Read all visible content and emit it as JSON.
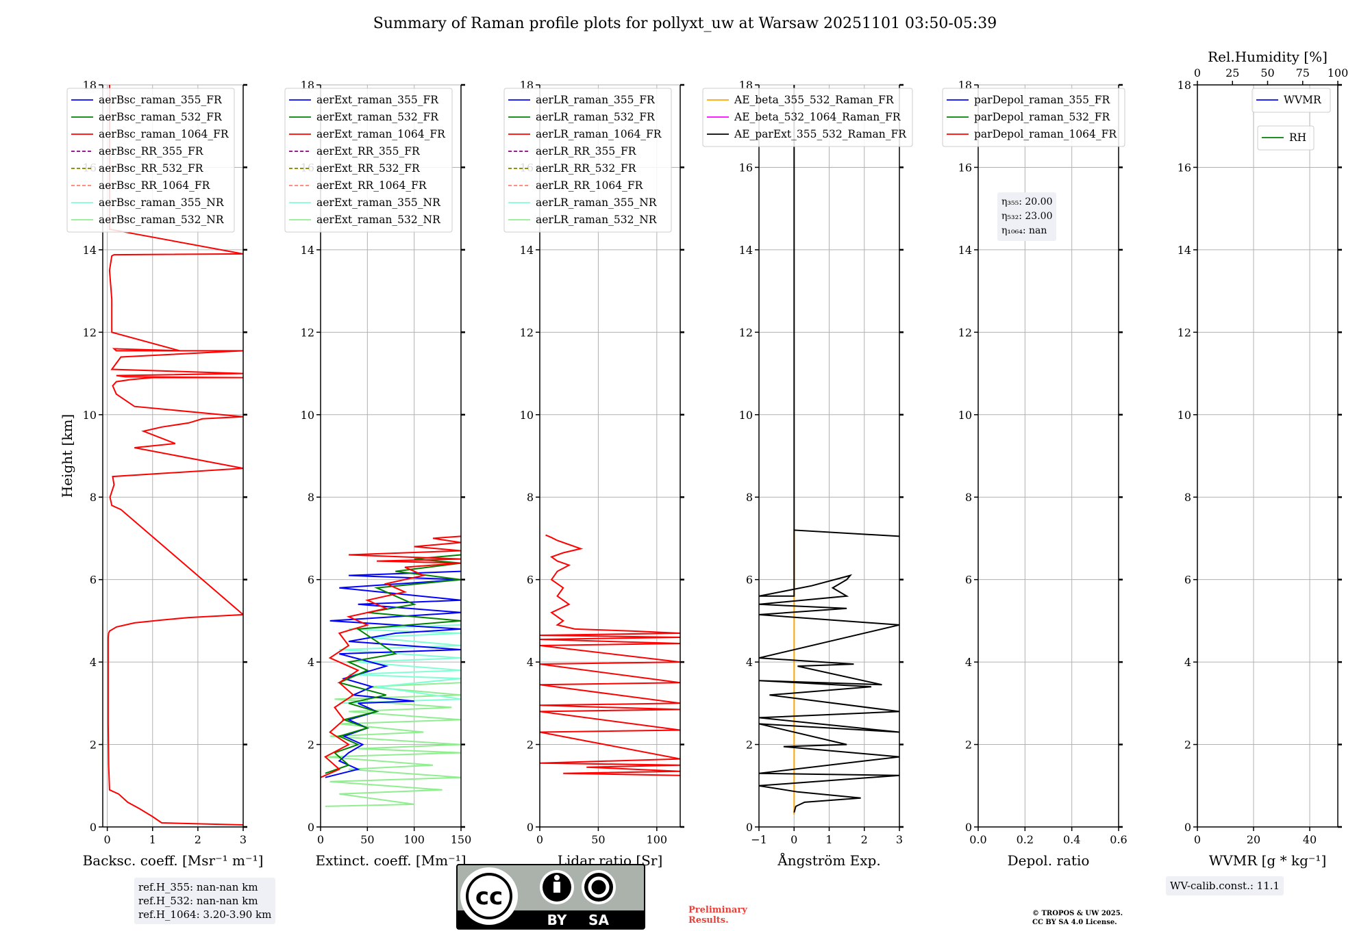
{
  "title": "Summary of Raman profile plots for pollyxt_uw at Warsaw 20251101 03:50-05:39",
  "colors": {
    "blue": "#0000ff",
    "green": "#008000",
    "red": "#ff0000",
    "purple": "#800080",
    "olive": "#808000",
    "salmon": "#fa8072",
    "aqua": "#7fffd4",
    "lightgreen": "#90ee90",
    "orange": "#ffa500",
    "magenta": "#ff00ff",
    "black": "#000000"
  },
  "chart_data": [
    {
      "type": "line",
      "id": "bsc",
      "xlabel": "Backsc. coeff. [Msr⁻¹ m⁻¹]",
      "ylabel": "Height [km]",
      "xlim": [
        -0.1,
        3
      ],
      "ylim": [
        0,
        18
      ],
      "xticks": [
        "0",
        "1",
        "2",
        "3"
      ],
      "xtick_values": [
        0,
        1,
        2,
        3
      ],
      "yticks": [
        "0",
        "2",
        "4",
        "6",
        "8",
        "10",
        "12",
        "14",
        "16",
        "18"
      ],
      "legend": [
        {
          "label": "aerBsc_raman_355_FR",
          "color": "blue",
          "dash": false
        },
        {
          "label": "aerBsc_raman_532_FR",
          "color": "green",
          "dash": false
        },
        {
          "label": "aerBsc_raman_1064_FR",
          "color": "red",
          "dash": false
        },
        {
          "label": "aerBsc_RR_355_FR",
          "color": "purple",
          "dash": true
        },
        {
          "label": "aerBsc_RR_532_FR",
          "color": "olive",
          "dash": true
        },
        {
          "label": "aerBsc_RR_1064_FR",
          "color": "salmon",
          "dash": true
        },
        {
          "label": "aerBsc_raman_355_NR",
          "color": "aqua",
          "dash": false
        },
        {
          "label": "aerBsc_raman_532_NR",
          "color": "lightgreen",
          "dash": false
        }
      ],
      "series": [
        {
          "name": "aerBsc_raman_1064_FR",
          "color": "red",
          "x": [
            3.0,
            1.2,
            1.0,
            0.7,
            0.45,
            0.25,
            0.05,
            0.03,
            0.02,
            0.02,
            0.02,
            0.02,
            0.03,
            0.05,
            0.2,
            0.6,
            1.2,
            1.8,
            3.0,
            0.3,
            0.1,
            0.06,
            0.15,
            0.12,
            3.0,
            0.6,
            1.5,
            0.8,
            1.2,
            1.8,
            2.1,
            3.0,
            0.6,
            0.2,
            0.12,
            0.2,
            0.5,
            1.0,
            3.0,
            0.4,
            0.2,
            3.0,
            0.1,
            0.3,
            3.0,
            0.2,
            0.15,
            1.6,
            0.1,
            0.1,
            0.05,
            0.1,
            0.15,
            3.0,
            0.05,
            0.05,
            0.05
          ],
          "y": [
            0.05,
            0.1,
            0.25,
            0.45,
            0.6,
            0.8,
            0.9,
            1.5,
            2.5,
            3.5,
            4.4,
            4.6,
            4.7,
            4.75,
            4.85,
            4.95,
            5.02,
            5.08,
            5.15,
            7.7,
            7.8,
            8.0,
            8.3,
            8.5,
            8.7,
            9.2,
            9.3,
            9.6,
            9.7,
            9.8,
            9.9,
            9.95,
            10.2,
            10.5,
            10.7,
            10.8,
            10.85,
            10.9,
            10.9,
            10.92,
            10.95,
            11.0,
            11.1,
            11.4,
            11.55,
            11.55,
            11.6,
            11.55,
            12.0,
            12.8,
            13.5,
            13.85,
            13.88,
            13.9,
            14.5,
            16.0,
            18.0
          ]
        }
      ]
    },
    {
      "type": "line",
      "id": "ext",
      "xlabel": "Extinct. coeff. [Mm⁻¹]",
      "xlim": [
        0,
        150
      ],
      "ylim": [
        0,
        18
      ],
      "xticks": [
        "0",
        "50",
        "100",
        "150"
      ],
      "xtick_values": [
        0,
        50,
        100,
        150
      ],
      "yticks": [
        "0",
        "2",
        "4",
        "6",
        "8",
        "10",
        "12",
        "14",
        "16",
        "18"
      ],
      "legend": [
        {
          "label": "aerExt_raman_355_FR",
          "color": "blue",
          "dash": false
        },
        {
          "label": "aerExt_raman_532_FR",
          "color": "green",
          "dash": false
        },
        {
          "label": "aerExt_raman_1064_FR",
          "color": "red",
          "dash": false
        },
        {
          "label": "aerExt_RR_355_FR",
          "color": "purple",
          "dash": true
        },
        {
          "label": "aerExt_RR_532_FR",
          "color": "olive",
          "dash": true
        },
        {
          "label": "aerExt_RR_1064_FR",
          "color": "salmon",
          "dash": true
        },
        {
          "label": "aerExt_raman_355_NR",
          "color": "aqua",
          "dash": false
        },
        {
          "label": "aerExt_raman_532_NR",
          "color": "lightgreen",
          "dash": false
        }
      ],
      "series": [
        {
          "name": "aerExt_raman_532_NR",
          "color": "lightgreen",
          "x": [
            5,
            100,
            20,
            130,
            10,
            150,
            30,
            120,
            5,
            150,
            40,
            150,
            10,
            110,
            20,
            150,
            30,
            140,
            15,
            150,
            50,
            150
          ],
          "y": [
            0.5,
            0.55,
            0.8,
            0.9,
            1.1,
            1.2,
            1.4,
            1.5,
            1.7,
            1.8,
            1.9,
            2.0,
            2.2,
            2.3,
            2.5,
            2.6,
            2.8,
            2.9,
            3.1,
            3.2,
            3.4,
            3.5
          ]
        },
        {
          "name": "aerExt_raman_355_NR",
          "color": "aqua",
          "x": [
            20,
            150,
            60,
            150,
            30,
            150,
            40,
            150,
            20,
            150,
            50,
            150,
            30,
            150
          ],
          "y": [
            3.0,
            3.1,
            3.4,
            3.6,
            3.7,
            3.8,
            4.0,
            4.1,
            4.3,
            4.4,
            4.6,
            4.7,
            4.8,
            4.9
          ]
        },
        {
          "name": "aerExt_raman_355_FR",
          "color": "blue",
          "x": [
            5,
            40,
            20,
            30,
            45,
            25,
            50,
            30,
            60,
            40,
            100,
            35,
            55,
            25,
            70,
            20,
            150,
            30,
            80,
            150,
            10,
            150,
            40,
            150,
            20,
            150,
            30,
            150
          ],
          "y": [
            1.2,
            1.4,
            1.6,
            1.8,
            2.0,
            2.2,
            2.4,
            2.6,
            2.8,
            3.0,
            3.05,
            3.2,
            3.4,
            3.6,
            3.9,
            4.2,
            4.3,
            4.5,
            4.7,
            4.8,
            5.0,
            5.2,
            5.4,
            5.5,
            5.8,
            6.0,
            6.1,
            6.2
          ]
        },
        {
          "name": "aerExt_raman_532_FR",
          "color": "green",
          "x": [
            5,
            30,
            15,
            40,
            20,
            50,
            25,
            60,
            30,
            70,
            20,
            50,
            30,
            80,
            40,
            150,
            50,
            100,
            60,
            150,
            80,
            150,
            100,
            150
          ],
          "y": [
            1.3,
            1.5,
            1.8,
            2.0,
            2.2,
            2.4,
            2.6,
            2.8,
            3.0,
            3.2,
            3.5,
            3.8,
            4.0,
            4.2,
            4.8,
            5.0,
            5.2,
            5.4,
            5.8,
            6.0,
            6.2,
            6.4,
            6.5,
            6.6
          ]
        },
        {
          "name": "aerExt_raman_1064_FR",
          "color": "red",
          "x": [
            0,
            20,
            5,
            30,
            10,
            25,
            15,
            35,
            20,
            40,
            10,
            30,
            20,
            50,
            30,
            70,
            50,
            90,
            70,
            110,
            90,
            150,
            60,
            150,
            30,
            150,
            100,
            150,
            120,
            150
          ],
          "y": [
            1.2,
            1.4,
            1.7,
            2.0,
            2.3,
            2.6,
            2.9,
            3.2,
            3.5,
            3.8,
            4.1,
            4.4,
            4.7,
            4.9,
            5.1,
            5.3,
            5.5,
            5.7,
            5.9,
            6.1,
            6.3,
            6.4,
            6.45,
            6.5,
            6.6,
            6.7,
            6.8,
            6.9,
            7.0,
            7.05
          ]
        }
      ]
    },
    {
      "type": "line",
      "id": "lr",
      "xlabel": "Lidar ratio [Sr]",
      "xlim": [
        0,
        120
      ],
      "ylim": [
        0,
        18
      ],
      "xticks": [
        "0",
        "50",
        "100"
      ],
      "xtick_values": [
        0,
        50,
        100
      ],
      "yticks": [
        "0",
        "2",
        "4",
        "6",
        "8",
        "10",
        "12",
        "14",
        "16",
        "18"
      ],
      "legend": [
        {
          "label": "aerLR_raman_355_FR",
          "color": "blue",
          "dash": false
        },
        {
          "label": "aerLR_raman_532_FR",
          "color": "green",
          "dash": false
        },
        {
          "label": "aerLR_raman_1064_FR",
          "color": "red",
          "dash": false
        },
        {
          "label": "aerLR_RR_355_FR",
          "color": "purple",
          "dash": true
        },
        {
          "label": "aerLR_RR_532_FR",
          "color": "olive",
          "dash": true
        },
        {
          "label": "aerLR_RR_1064_FR",
          "color": "salmon",
          "dash": true
        },
        {
          "label": "aerLR_raman_355_NR",
          "color": "aqua",
          "dash": false
        },
        {
          "label": "aerLR_raman_532_NR",
          "color": "lightgreen",
          "dash": false
        }
      ],
      "series": [
        {
          "name": "aerLR_raman_1064_FR",
          "color": "red",
          "x": [
            120,
            20,
            120,
            40,
            120,
            0,
            120,
            0,
            120,
            0,
            120,
            0,
            120,
            0,
            120,
            0,
            120,
            0,
            120,
            0,
            120,
            0,
            120,
            80,
            30,
            15,
            20,
            10,
            25,
            15,
            20,
            10,
            15,
            25,
            15,
            10,
            20,
            35,
            25,
            15,
            10,
            5
          ],
          "y": [
            1.25,
            1.3,
            1.35,
            1.45,
            1.5,
            1.55,
            1.65,
            2.3,
            2.35,
            2.8,
            2.85,
            2.95,
            3.0,
            3.45,
            3.5,
            3.95,
            4.0,
            4.4,
            4.45,
            4.55,
            4.6,
            4.65,
            4.7,
            4.75,
            4.8,
            4.9,
            5.0,
            5.2,
            5.4,
            5.6,
            5.8,
            6.0,
            6.2,
            6.35,
            6.45,
            6.55,
            6.65,
            6.75,
            6.85,
            6.95,
            7.02,
            7.08
          ]
        }
      ]
    },
    {
      "type": "line",
      "id": "ae",
      "xlabel": "Ångström Exp.",
      "xlim": [
        -1,
        3
      ],
      "ylim": [
        0,
        18
      ],
      "xticks": [
        "−1",
        "0",
        "1",
        "2",
        "3"
      ],
      "xtick_values": [
        -1,
        0,
        1,
        2,
        3
      ],
      "yticks": [
        "0",
        "2",
        "4",
        "6",
        "8",
        "10",
        "12",
        "14",
        "16",
        "18"
      ],
      "legend": [
        {
          "label": "AE_beta_355_532_Raman_FR",
          "color": "orange",
          "dash": false
        },
        {
          "label": "AE_beta_532_1064_Raman_FR",
          "color": "magenta",
          "dash": false
        },
        {
          "label": "AE_parExt_355_532_Raman_FR",
          "color": "black",
          "dash": false
        }
      ],
      "series": [
        {
          "name": "AE_beta_355_532_Raman_FR",
          "color": "orange",
          "x": [
            0,
            0
          ],
          "y": [
            0.3,
            7.2
          ]
        },
        {
          "name": "AE_parExt_355_532_Raman_FR",
          "color": "black",
          "x": [
            0,
            0.05,
            0.3,
            1.9,
            0.1,
            -1,
            3,
            -1,
            3,
            -0.3,
            1.5,
            -1,
            3,
            -1,
            3,
            -0.7,
            2.2,
            -1,
            2.5,
            0.1,
            1.7,
            -1,
            3,
            -1,
            1.5,
            -1,
            1.5,
            1.1,
            1.5,
            1.6,
            0.5,
            -1,
            0,
            0,
            3.0
          ],
          "y": [
            0.35,
            0.5,
            0.6,
            0.7,
            0.85,
            1.0,
            1.25,
            1.3,
            1.7,
            1.95,
            2.0,
            2.5,
            2.3,
            2.65,
            2.8,
            3.2,
            3.4,
            3.55,
            3.45,
            3.9,
            3.95,
            4.1,
            4.9,
            5.15,
            5.3,
            5.4,
            5.6,
            5.8,
            6.0,
            6.1,
            5.85,
            5.6,
            5.6,
            7.2,
            7.05
          ]
        },
        {
          "name": "AE_parExt_355_532_Raman_FR_top",
          "color": "black",
          "x": [
            0,
            0
          ],
          "y": [
            7.2,
            18
          ]
        }
      ]
    },
    {
      "type": "line",
      "id": "depol",
      "xlabel": "Depol. ratio",
      "xlim": [
        0,
        0.6
      ],
      "ylim": [
        0,
        18
      ],
      "xticks": [
        "0.0",
        "0.2",
        "0.4",
        "0.6"
      ],
      "xtick_values": [
        0,
        0.2,
        0.4,
        0.6
      ],
      "yticks": [
        "0",
        "2",
        "4",
        "6",
        "8",
        "10",
        "12",
        "14",
        "16",
        "18"
      ],
      "legend": [
        {
          "label": "parDepol_raman_355_FR",
          "color": "blue",
          "dash": false
        },
        {
          "label": "parDepol_raman_532_FR",
          "color": "green",
          "dash": false
        },
        {
          "label": "parDepol_raman_1064_FR",
          "color": "red",
          "dash": false
        }
      ],
      "series": []
    },
    {
      "type": "line",
      "id": "wvmr",
      "xlabel": "WVMR [g * kg⁻¹]",
      "xlim": [
        0,
        50
      ],
      "ylim": [
        0,
        18
      ],
      "xticks": [
        "0",
        "20",
        "40"
      ],
      "xtick_values": [
        0,
        20,
        40
      ],
      "yticks": [
        "0",
        "2",
        "4",
        "6",
        "8",
        "10",
        "12",
        "14",
        "16",
        "18"
      ],
      "top_axis": {
        "label": "Rel.Humidity [%]",
        "xlim": [
          0,
          100
        ],
        "ticks": [
          "0",
          "25",
          "50",
          "75",
          "100"
        ],
        "tick_values": [
          0,
          25,
          50,
          75,
          100
        ]
      },
      "legend": [
        {
          "label": "WVMR",
          "color": "blue",
          "dash": false
        }
      ],
      "legend2": [
        {
          "label": "RH",
          "color": "green",
          "dash": false
        }
      ],
      "series": []
    }
  ],
  "annotations": {
    "eta_355_label": "η₃₅₅: 20.00",
    "eta_532_label": "η₅₃₂: 23.00",
    "eta_1064_label": "η₁₀₆₄: nan",
    "ref_h_355": "ref.H_355: nan-nan km",
    "ref_h_532": "ref.H_532: nan-nan km",
    "ref_h_1064": "ref.H_1064: 3.20-3.90 km",
    "wv_calib": "WV-calib.const.: 11.1",
    "preliminary_1": "Preliminary",
    "preliminary_2": "Results.",
    "copyright_1": "© TROPOS & UW 2025.",
    "copyright_2": "CC BY SA 4.0 License.",
    "license_by": "BY",
    "license_sa": "SA",
    "license_cc": "cc"
  }
}
